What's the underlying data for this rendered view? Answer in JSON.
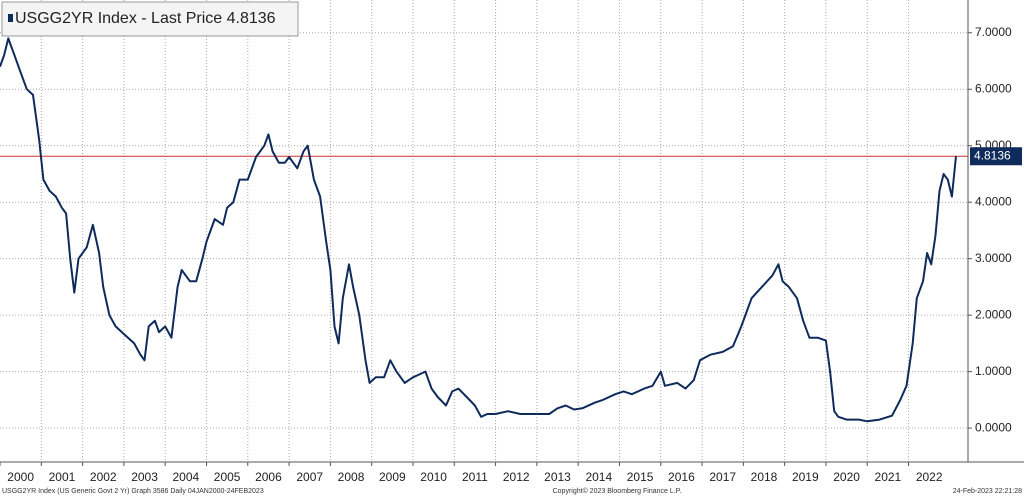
{
  "chart_data": {
    "type": "line",
    "legend": "USGG2YR Index - Last Price 4.8136",
    "color": "#0f2b5b",
    "last_price": 4.8136,
    "last_price_color": "#d03030",
    "xlim": [
      2000,
      2023.44
    ],
    "ylim": [
      -0.6,
      7.58
    ],
    "xticks": [
      2000,
      2001,
      2002,
      2003,
      2004,
      2005,
      2006,
      2007,
      2008,
      2009,
      2010,
      2011,
      2012,
      2013,
      2014,
      2015,
      2016,
      2017,
      2018,
      2019,
      2020,
      2021,
      2022
    ],
    "yticks": [
      {
        "value": 0,
        "label": "0.0000"
      },
      {
        "value": 1,
        "label": "1.0000"
      },
      {
        "value": 2,
        "label": "2.0000"
      },
      {
        "value": 3,
        "label": "3.0000"
      },
      {
        "value": 4,
        "label": "4.0000"
      },
      {
        "value": 5,
        "label": "5.0000"
      },
      {
        "value": 6,
        "label": "6.0000"
      },
      {
        "value": 7,
        "label": "7.0000"
      }
    ],
    "grid": true,
    "x": [
      2000.0,
      2000.1,
      2000.2,
      2000.35,
      2000.5,
      2000.65,
      2000.8,
      2000.95,
      2001.05,
      2001.2,
      2001.35,
      2001.5,
      2001.6,
      2001.7,
      2001.8,
      2001.9,
      2002.0,
      2002.1,
      2002.25,
      2002.4,
      2002.5,
      2002.65,
      2002.8,
      2002.95,
      2003.1,
      2003.25,
      2003.4,
      2003.5,
      2003.6,
      2003.75,
      2003.85,
      2004.0,
      2004.15,
      2004.3,
      2004.4,
      2004.6,
      2004.75,
      2004.9,
      2005.0,
      2005.2,
      2005.4,
      2005.5,
      2005.65,
      2005.8,
      2006.0,
      2006.2,
      2006.4,
      2006.5,
      2006.6,
      2006.75,
      2006.9,
      2007.0,
      2007.2,
      2007.35,
      2007.45,
      2007.6,
      2007.75,
      2007.9,
      2008.0,
      2008.1,
      2008.2,
      2008.3,
      2008.45,
      2008.55,
      2008.7,
      2008.85,
      2008.95,
      2009.1,
      2009.3,
      2009.45,
      2009.6,
      2009.8,
      2010.0,
      2010.15,
      2010.3,
      2010.45,
      2010.6,
      2010.8,
      2010.95,
      2011.1,
      2011.3,
      2011.5,
      2011.65,
      2011.8,
      2012.0,
      2012.3,
      2012.6,
      2012.9,
      2013.1,
      2013.3,
      2013.5,
      2013.7,
      2013.9,
      2014.1,
      2014.4,
      2014.6,
      2014.9,
      2015.1,
      2015.3,
      2015.6,
      2015.8,
      2016.0,
      2016.1,
      2016.4,
      2016.6,
      2016.8,
      2016.95,
      2017.2,
      2017.5,
      2017.75,
      2017.95,
      2018.2,
      2018.45,
      2018.7,
      2018.85,
      2018.95,
      2019.1,
      2019.3,
      2019.45,
      2019.6,
      2019.8,
      2020.0,
      2020.1,
      2020.2,
      2020.3,
      2020.5,
      2020.8,
      2021.0,
      2021.3,
      2021.6,
      2021.8,
      2021.95,
      2022.1,
      2022.2,
      2022.35,
      2022.45,
      2022.55,
      2022.65,
      2022.75,
      2022.85,
      2022.95,
      2023.05,
      2023.15
    ],
    "values": [
      6.4,
      6.6,
      6.9,
      6.6,
      6.3,
      6.0,
      5.9,
      5.1,
      4.4,
      4.2,
      4.1,
      3.9,
      3.8,
      3.0,
      2.4,
      3.0,
      3.1,
      3.2,
      3.6,
      3.1,
      2.5,
      2.0,
      1.8,
      1.7,
      1.6,
      1.5,
      1.3,
      1.2,
      1.8,
      1.9,
      1.7,
      1.8,
      1.6,
      2.5,
      2.8,
      2.6,
      2.6,
      3.0,
      3.3,
      3.7,
      3.6,
      3.9,
      4.0,
      4.4,
      4.4,
      4.8,
      5.0,
      5.2,
      4.9,
      4.7,
      4.7,
      4.8,
      4.6,
      4.9,
      5.0,
      4.4,
      4.1,
      3.3,
      2.8,
      1.8,
      1.5,
      2.3,
      2.9,
      2.5,
      2.0,
      1.2,
      0.8,
      0.9,
      0.9,
      1.2,
      1.0,
      0.8,
      0.9,
      0.95,
      1.0,
      0.7,
      0.55,
      0.4,
      0.65,
      0.7,
      0.55,
      0.4,
      0.2,
      0.25,
      0.25,
      0.3,
      0.25,
      0.25,
      0.25,
      0.25,
      0.35,
      0.4,
      0.33,
      0.35,
      0.45,
      0.5,
      0.6,
      0.65,
      0.6,
      0.7,
      0.75,
      1.0,
      0.75,
      0.8,
      0.7,
      0.85,
      1.2,
      1.3,
      1.35,
      1.45,
      1.8,
      2.3,
      2.5,
      2.7,
      2.9,
      2.6,
      2.5,
      2.3,
      1.9,
      1.6,
      1.6,
      1.55,
      1.0,
      0.3,
      0.2,
      0.15,
      0.15,
      0.12,
      0.15,
      0.22,
      0.5,
      0.75,
      1.5,
      2.3,
      2.6,
      3.1,
      2.9,
      3.4,
      4.2,
      4.5,
      4.4,
      4.1,
      4.8136
    ],
    "footer": {
      "left": "USGG2YR Index (US Generic Govt 2 Yr) Graph 3586  Daily 04JAN2000-24FEB2023",
      "center": "Copyright© 2023 Bloomberg Finance L.P.",
      "right": "24-Feb-2023 22:21:28"
    }
  }
}
